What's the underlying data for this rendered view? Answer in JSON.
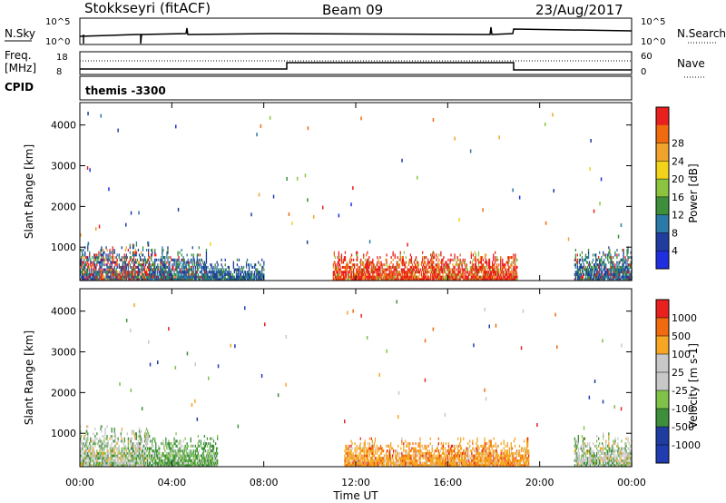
{
  "header": {
    "station": "Stokkseyri (fitACF)",
    "beam": "Beam 09",
    "date": "23/Aug/2017"
  },
  "top_panels": {
    "nsky_label": "N.Sky",
    "nsky_ticks": [
      "10^5",
      "10^0"
    ],
    "nsearch_label": "N.Search",
    "nsearch_ticks": [
      "10^5",
      "10^0"
    ],
    "freq_label": "Freq.",
    "freq_unit": "[MHz]",
    "freq_ticks": [
      "18",
      "8"
    ],
    "nave_label": "Nave",
    "nave_ticks": [
      "60",
      "0"
    ],
    "cpid_label": "CPID",
    "cpid_value": "themis -3300"
  },
  "colors": {
    "power": [
      "#1f2fe0",
      "#203c9e",
      "#2a7aa8",
      "#3d8f3c",
      "#8bc53f",
      "#f2d21a",
      "#f0a22c",
      "#f06a10",
      "#e8201e"
    ],
    "velocity": [
      "#e8201e",
      "#f06a10",
      "#f6a623",
      "#c8c8c8",
      "#c8c8c8",
      "#7ec24a",
      "#3d8f3c",
      "#1f3da0",
      "#203cb0"
    ]
  },
  "chart_data": [
    {
      "type": "heatmap",
      "title": "",
      "ylabel": "Slant Range [km]",
      "xlabel": "",
      "x_ticks": [
        "00:00",
        "04:00",
        "08:00",
        "12:00",
        "16:00",
        "20:00",
        "00:00"
      ],
      "y_ticks": [
        "1000",
        "2000",
        "3000",
        "4000"
      ],
      "xlim": [
        0,
        24
      ],
      "ylim": [
        180,
        4550
      ],
      "colorbar": {
        "label": "Power [dB]",
        "ticks": [
          "4",
          "8",
          "12",
          "16",
          "20",
          "24",
          "28"
        ]
      },
      "regions": [
        {
          "x": [
            0.0,
            3.0
          ],
          "y": [
            180,
            1100
          ],
          "level": "mixed-high"
        },
        {
          "x": [
            3.0,
            5.5
          ],
          "y": [
            180,
            1000
          ],
          "level": "mixed"
        },
        {
          "x": [
            5.5,
            8.0
          ],
          "y": [
            180,
            700
          ],
          "level": "low"
        },
        {
          "x": [
            11.0,
            19.0
          ],
          "y": [
            180,
            900
          ],
          "level": "high"
        },
        {
          "x": [
            21.5,
            24.0
          ],
          "y": [
            180,
            1000
          ],
          "level": "mixed"
        }
      ]
    },
    {
      "type": "heatmap",
      "title": "",
      "ylabel": "Slant Range [km]",
      "xlabel": "Time UT",
      "x_ticks": [
        "00:00",
        "04:00",
        "08:00",
        "12:00",
        "16:00",
        "20:00",
        "00:00"
      ],
      "y_ticks": [
        "1000",
        "2000",
        "3000",
        "4000"
      ],
      "xlim": [
        0,
        24
      ],
      "ylim": [
        180,
        4550
      ],
      "colorbar": {
        "label": "Velocity [m s-1]",
        "ticks": [
          "1000",
          "500",
          "100",
          "25",
          "-25",
          "-100",
          "-500",
          "-1000"
        ]
      },
      "regions": [
        {
          "x": [
            0.0,
            3.0
          ],
          "y": [
            180,
            1200
          ],
          "level": "grey-green"
        },
        {
          "x": [
            3.0,
            6.0
          ],
          "y": [
            180,
            1000
          ],
          "level": "green"
        },
        {
          "x": [
            11.5,
            19.5
          ],
          "y": [
            180,
            900
          ],
          "level": "orange"
        },
        {
          "x": [
            21.5,
            24.0
          ],
          "y": [
            180,
            1000
          ],
          "level": "grey-green"
        }
      ]
    }
  ]
}
